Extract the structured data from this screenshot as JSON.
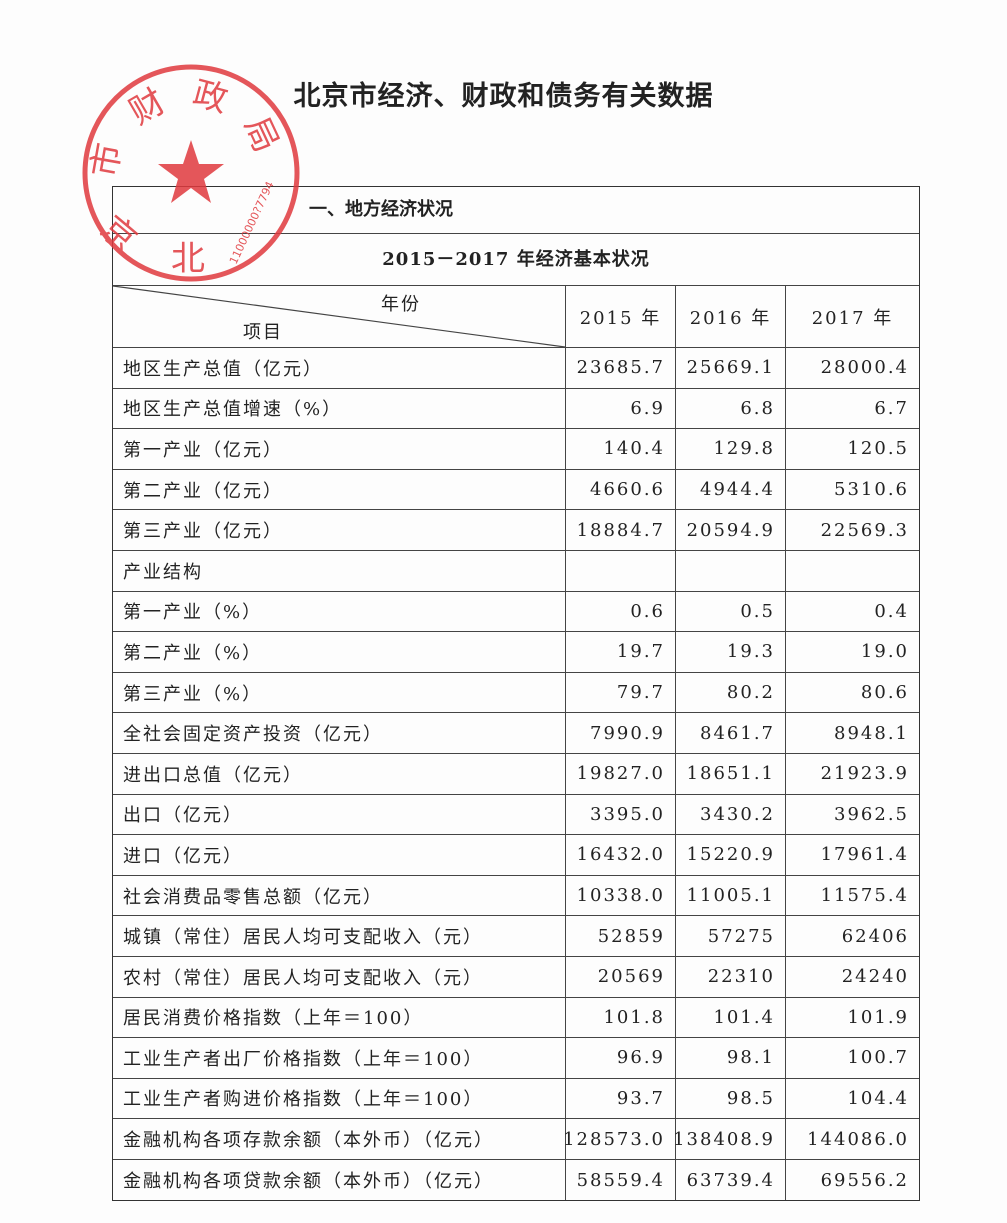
{
  "title": "北京市经济、财政和债务有关数据",
  "section": "一、地方经济状况",
  "table_title": "2015－2017 年经济基本状况",
  "header": {
    "year_label": "年份",
    "item_label": "项目",
    "years": [
      "2015 年",
      "2016 年",
      "2017 年"
    ]
  },
  "rows": [
    {
      "label": "地区生产总值（亿元）",
      "values": [
        "23685.7",
        "25669.1",
        "28000.4"
      ]
    },
    {
      "label": "地区生产总值增速（%）",
      "values": [
        "6.9",
        "6.8",
        "6.7"
      ]
    },
    {
      "label": "第一产业（亿元）",
      "values": [
        "140.4",
        "129.8",
        "120.5"
      ]
    },
    {
      "label": "第二产业（亿元）",
      "values": [
        "4660.6",
        "4944.4",
        "5310.6"
      ]
    },
    {
      "label": "第三产业（亿元）",
      "values": [
        "18884.7",
        "20594.9",
        "22569.3"
      ]
    },
    {
      "label": "产业结构",
      "values": [
        "",
        "",
        ""
      ]
    },
    {
      "label": "第一产业（%）",
      "values": [
        "0.6",
        "0.5",
        "0.4"
      ]
    },
    {
      "label": "第二产业（%）",
      "values": [
        "19.7",
        "19.3",
        "19.0"
      ]
    },
    {
      "label": "第三产业（%）",
      "values": [
        "79.7",
        "80.2",
        "80.6"
      ]
    },
    {
      "label": "全社会固定资产投资（亿元）",
      "values": [
        "7990.9",
        "8461.7",
        "8948.1"
      ]
    },
    {
      "label": "进出口总值（亿元）",
      "values": [
        "19827.0",
        "18651.1",
        "21923.9"
      ]
    },
    {
      "label": "出口（亿元）",
      "values": [
        "3395.0",
        "3430.2",
        "3962.5"
      ]
    },
    {
      "label": "进口（亿元）",
      "values": [
        "16432.0",
        "15220.9",
        "17961.4"
      ]
    },
    {
      "label": "社会消费品零售总额（亿元）",
      "values": [
        "10338.0",
        "11005.1",
        "11575.4"
      ]
    },
    {
      "label": "城镇（常住）居民人均可支配收入（元）",
      "values": [
        "52859",
        "57275",
        "62406"
      ]
    },
    {
      "label": "农村（常住）居民人均可支配收入（元）",
      "values": [
        "20569",
        "22310",
        "24240"
      ]
    },
    {
      "label": "居民消费价格指数（上年＝100）",
      "values": [
        "101.8",
        "101.4",
        "101.9"
      ]
    },
    {
      "label": "工业生产者出厂价格指数（上年＝100）",
      "values": [
        "96.9",
        "98.1",
        "100.7"
      ]
    },
    {
      "label": "工业生产者购进价格指数（上年＝100）",
      "values": [
        "93.7",
        "98.5",
        "104.4"
      ]
    },
    {
      "label": "金融机构各项存款余额（本外币）（亿元）",
      "values": [
        "128573.0",
        "138408.9",
        "144086.0"
      ]
    },
    {
      "label": "金融机构各项贷款余额（本外币）（亿元）",
      "values": [
        "58559.4",
        "63739.4",
        "69556.2"
      ]
    }
  ],
  "stamp": {
    "chars": [
      "北",
      "京",
      "市",
      "财",
      "政",
      "局"
    ],
    "number": "11000000?7794",
    "color": "#e03a3e"
  }
}
